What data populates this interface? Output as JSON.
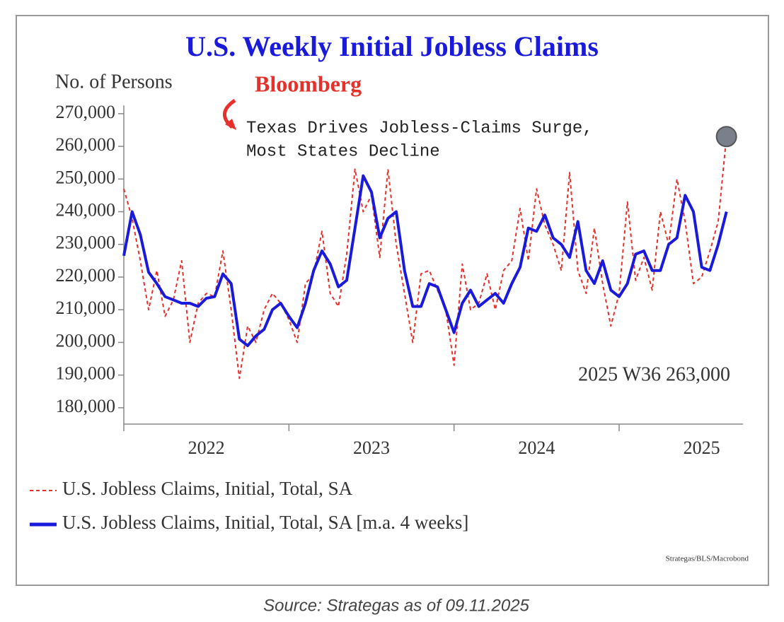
{
  "chart_data": {
    "type": "line",
    "title": "U.S. Weekly Initial Jobless Claims",
    "y_label": "No. of Persons",
    "annotations": {
      "brand": "Bloomberg",
      "headline": [
        "Texas Drives Jobless-Claims Surge,",
        "Most States Decline"
      ],
      "last_value": "2025 W36 263,000"
    },
    "source_note": "Strategas/BLS/Macrobond",
    "caption": "Source: Strategas as of 09.11.2025",
    "x": [
      2022,
      2022.05,
      2022.1,
      2022.15,
      2022.2,
      2022.25,
      2022.3,
      2022.35,
      2022.4,
      2022.45,
      2022.5,
      2022.55,
      2022.6,
      2022.65,
      2022.7,
      2022.75,
      2022.8,
      2022.85,
      2022.9,
      2022.95,
      2023,
      2023.05,
      2023.1,
      2023.15,
      2023.2,
      2023.25,
      2023.3,
      2023.35,
      2023.4,
      2023.45,
      2023.5,
      2023.55,
      2023.6,
      2023.65,
      2023.7,
      2023.75,
      2023.8,
      2023.85,
      2023.9,
      2023.95,
      2024,
      2024.05,
      2024.1,
      2024.15,
      2024.2,
      2024.25,
      2024.3,
      2024.35,
      2024.4,
      2024.45,
      2024.5,
      2024.55,
      2024.6,
      2024.65,
      2024.7,
      2024.75,
      2024.8,
      2024.85,
      2024.9,
      2024.95,
      2025,
      2025.05,
      2025.1,
      2025.15,
      2025.2,
      2025.25,
      2025.3,
      2025.35,
      2025.4,
      2025.45,
      2025.5,
      2025.55,
      2025.6,
      2025.65
    ],
    "series": [
      {
        "name": "U.S. Jobless Claims, Initial, Total, SA",
        "color": "#e8302a",
        "dashed": true,
        "values": [
          247000,
          238000,
          225000,
          210000,
          222000,
          208000,
          213000,
          225000,
          200000,
          212000,
          215000,
          214000,
          228000,
          210000,
          189000,
          205000,
          200000,
          210000,
          215000,
          212000,
          207000,
          200000,
          218000,
          221000,
          234000,
          215000,
          211000,
          227000,
          253000,
          240000,
          245000,
          226000,
          253000,
          230000,
          215000,
          200000,
          221000,
          222000,
          216000,
          210000,
          193000,
          224000,
          210000,
          212000,
          221000,
          210000,
          222000,
          225000,
          241000,
          225000,
          247000,
          236000,
          230000,
          222000,
          252000,
          222000,
          215000,
          235000,
          218000,
          205000,
          215000,
          243000,
          219000,
          226000,
          216000,
          240000,
          230000,
          250000,
          237000,
          218000,
          220000,
          228000,
          237000,
          263000
        ]
      },
      {
        "name": "U.S. Jobless Claims, Initial, Total, SA [m.a. 4 weeks]",
        "color": "#1a1adb",
        "dashed": false,
        "values": [
          226500,
          240000,
          233000,
          221500,
          218000,
          214000,
          213000,
          212000,
          212000,
          211000,
          213500,
          214000,
          221000,
          218000,
          201000,
          199000,
          202000,
          204000,
          210000,
          212000,
          208000,
          204500,
          212000,
          222000,
          228000,
          224000,
          217000,
          219000,
          235000,
          251000,
          246000,
          232000,
          238000,
          240000,
          222000,
          211000,
          211000,
          218000,
          217000,
          210000,
          203000,
          212000,
          216000,
          211000,
          213000,
          215000,
          212000,
          218000,
          223000,
          235000,
          234000,
          239000,
          232000,
          230000,
          226000,
          237000,
          222000,
          218000,
          225000,
          216000,
          214000,
          218000,
          227000,
          228000,
          222000,
          222000,
          230000,
          232000,
          245000,
          240000,
          223000,
          222000,
          230000,
          240000
        ]
      }
    ],
    "xlim": [
      2022,
      2025.75
    ],
    "xticks": [
      2022,
      2023,
      2024,
      2025
    ],
    "ylim": [
      175000,
      272500
    ],
    "yticks": [
      {
        "value": 180000,
        "label": "180,000"
      },
      {
        "value": 190000,
        "label": "190,000"
      },
      {
        "value": 200000,
        "label": "200,000"
      },
      {
        "value": 210000,
        "label": "210,000"
      },
      {
        "value": 220000,
        "label": "220,000"
      },
      {
        "value": 230000,
        "label": "230,000"
      },
      {
        "value": 240000,
        "label": "240,000"
      },
      {
        "value": 250000,
        "label": "250,000"
      },
      {
        "value": 260000,
        "label": "260,000"
      },
      {
        "value": 270000,
        "label": "270,000"
      }
    ],
    "grid": false
  }
}
